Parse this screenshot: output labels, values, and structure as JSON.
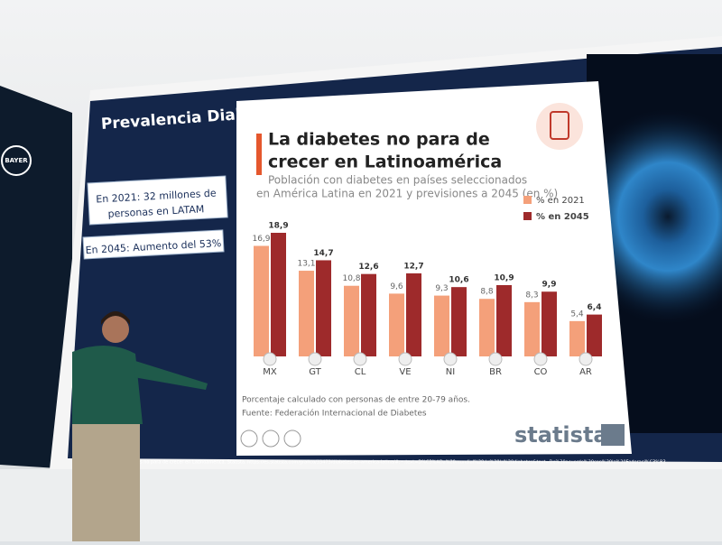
{
  "slide": {
    "logo": "BAYER",
    "title": "Prevalencia Diabetes Mellitus en LATAM",
    "callouts": [
      [
        "En 2021: 32 millones de",
        "personas en LATAM"
      ],
      [
        "En 2045: Aumento del 53%"
      ]
    ],
    "caption": "tes no para de crecer en Latinoamérica. Statista. https://es.statista.com/grafico/33473/diabetes-en-america-latina/#:~:text=D%C3%ADa%20mundial%20de%20la%20diabetes&text=De%20acuerdo%20con%20la%20Federaci%C3%B3"
  },
  "chart_data": {
    "type": "bar",
    "title": [
      "La diabetes no para de",
      "crecer en Latinoamérica"
    ],
    "subtitle": [
      "Población con diabetes en países seleccionados",
      "en América Latina en 2021 y previsiones a 2045 (en %)"
    ],
    "categories": [
      "MX",
      "GT",
      "CL",
      "VE",
      "NI",
      "BR",
      "CO",
      "AR"
    ],
    "series": [
      {
        "name": "% en 2021",
        "color": "#f4a07a",
        "values": [
          16.9,
          13.1,
          10.8,
          9.6,
          9.3,
          8.8,
          8.3,
          5.4
        ],
        "value_labels": [
          "16,9",
          "13,1",
          "10,8",
          "9,6",
          "9,3",
          "8,8",
          "8,3",
          "5,4"
        ]
      },
      {
        "name": "% en 2045",
        "color": "#9e2a2b",
        "values": [
          18.9,
          14.7,
          12.6,
          12.7,
          10.6,
          10.9,
          9.9,
          6.4
        ],
        "value_labels": [
          "18,9",
          "14,7",
          "12,6",
          "12,7",
          "10,6",
          "10,9",
          "9,9",
          "6,4"
        ]
      }
    ],
    "note": "Porcentaje calculado con personas de entre 20-79 años.",
    "source": "Fuente: Federación Internacional de Diabetes",
    "brand": "statista"
  }
}
